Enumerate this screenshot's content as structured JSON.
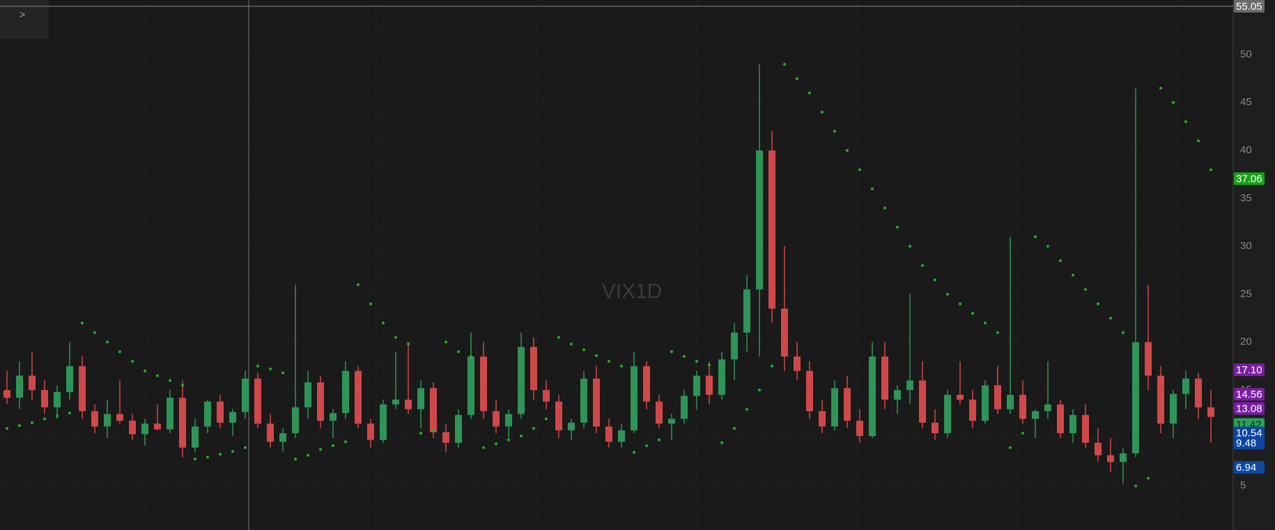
{
  "panel_toggle": ">",
  "chart_data": {
    "type": "candlestick",
    "title": "VIX1D",
    "ylim": [
      0.4,
      55.7
    ],
    "yticks": [
      5,
      10,
      15,
      20,
      25,
      30,
      35,
      40,
      45,
      50
    ],
    "grid": true,
    "up_color": "#2f9458",
    "down_color": "#d0494a",
    "sar_color": "#1fb51f",
    "candles": [
      [
        15,
        17,
        13.5,
        14.2
      ],
      [
        14.2,
        18,
        13,
        16.5
      ],
      [
        16.5,
        19,
        14,
        15
      ],
      [
        15,
        16,
        12.5,
        13.2
      ],
      [
        13.2,
        15.5,
        12,
        14.8
      ],
      [
        14.8,
        20,
        14,
        17.5
      ],
      [
        17.5,
        18.5,
        12,
        12.8
      ],
      [
        12.8,
        13.5,
        10.5,
        11.2
      ],
      [
        11.2,
        14,
        10,
        12.5
      ],
      [
        12.5,
        16,
        11.5,
        11.8
      ],
      [
        11.8,
        12.5,
        9.8,
        10.4
      ],
      [
        10.4,
        12,
        9.2,
        11.5
      ],
      [
        11.5,
        13.5,
        10.8,
        10.9
      ],
      [
        10.9,
        15,
        10.5,
        14.2
      ],
      [
        14.2,
        16,
        8,
        9
      ],
      [
        9,
        12,
        8.5,
        11.2
      ],
      [
        11.2,
        14,
        10.5,
        13.8
      ],
      [
        13.8,
        14.5,
        11,
        11.6
      ],
      [
        11.6,
        13,
        10.2,
        12.7
      ],
      [
        12.7,
        17,
        12,
        16.2
      ],
      [
        16.2,
        16.8,
        11,
        11.5
      ],
      [
        11.5,
        12.5,
        9,
        9.6
      ],
      [
        9.6,
        11,
        8.6,
        10.5
      ],
      [
        10.5,
        26,
        10,
        13.2
      ],
      [
        13.2,
        17,
        12,
        15.8
      ],
      [
        15.8,
        16.5,
        11,
        11.8
      ],
      [
        11.8,
        13,
        10,
        12.6
      ],
      [
        12.6,
        18,
        12,
        17
      ],
      [
        17,
        17.5,
        11,
        11.5
      ],
      [
        11.5,
        12,
        9,
        9.8
      ],
      [
        9.8,
        14,
        9.5,
        13.5
      ],
      [
        13.5,
        19,
        13,
        14
      ],
      [
        14,
        20,
        12.5,
        13
      ],
      [
        13,
        16,
        11,
        15.2
      ],
      [
        15.2,
        15.8,
        10,
        10.6
      ],
      [
        10.6,
        11.5,
        8.5,
        9.5
      ],
      [
        9.5,
        13,
        9,
        12.4
      ],
      [
        12.4,
        21,
        12,
        18.5
      ],
      [
        18.5,
        20,
        12,
        12.8
      ],
      [
        12.8,
        14,
        10.5,
        11.2
      ],
      [
        11.2,
        13,
        10,
        12.5
      ],
      [
        12.5,
        21,
        12,
        19.5
      ],
      [
        19.5,
        20.5,
        14,
        15
      ],
      [
        15,
        16,
        13,
        13.8
      ],
      [
        13.8,
        14.5,
        10,
        10.8
      ],
      [
        10.8,
        12,
        9.8,
        11.6
      ],
      [
        11.6,
        17,
        11,
        16.2
      ],
      [
        16.2,
        17.5,
        10.5,
        11.2
      ],
      [
        11.2,
        12,
        9,
        9.6
      ],
      [
        9.6,
        11.5,
        9,
        10.8
      ],
      [
        10.8,
        19,
        10.5,
        17.5
      ],
      [
        17.5,
        18,
        13,
        13.8
      ],
      [
        13.8,
        14.5,
        11,
        11.5
      ],
      [
        11.5,
        12.5,
        9.8,
        12
      ],
      [
        12,
        15,
        11.5,
        14.4
      ],
      [
        14.4,
        17,
        13,
        16.5
      ],
      [
        16.5,
        18,
        13.5,
        14.5
      ],
      [
        14.5,
        19,
        14,
        18.2
      ],
      [
        18.2,
        22,
        16,
        21
      ],
      [
        21,
        27,
        19,
        25.5
      ],
      [
        25.5,
        49,
        18.5,
        40
      ],
      [
        40,
        42,
        22,
        23.5
      ],
      [
        23.5,
        30,
        17,
        18.5
      ],
      [
        18.5,
        20,
        16,
        17
      ],
      [
        17,
        18,
        12,
        12.8
      ],
      [
        12.8,
        14,
        10.5,
        11.2
      ],
      [
        11.2,
        16,
        10.8,
        15.2
      ],
      [
        15.2,
        16.5,
        11,
        11.8
      ],
      [
        11.8,
        13,
        9.5,
        10.2
      ],
      [
        10.2,
        20,
        10,
        18.5
      ],
      [
        18.5,
        20,
        13,
        14
      ],
      [
        14,
        15.5,
        12.5,
        15
      ],
      [
        15,
        25,
        13.5,
        16
      ],
      [
        16,
        18,
        11,
        11.6
      ],
      [
        11.6,
        13,
        9.8,
        10.5
      ],
      [
        10.5,
        15,
        10,
        14.5
      ],
      [
        14.5,
        18,
        13.5,
        14
      ],
      [
        14,
        15,
        11,
        11.8
      ],
      [
        11.8,
        16,
        11.5,
        15.5
      ],
      [
        15.5,
        17.5,
        12.5,
        13
      ],
      [
        13,
        31,
        12.5,
        14.5
      ],
      [
        14.5,
        16,
        11.5,
        12
      ],
      [
        12,
        13,
        10,
        12.8
      ],
      [
        12.8,
        18,
        12,
        13.5
      ],
      [
        13.5,
        14,
        10,
        10.5
      ],
      [
        10.5,
        13,
        9.5,
        12.4
      ],
      [
        12.4,
        13.5,
        9,
        9.5
      ],
      [
        9.5,
        11,
        7.5,
        8.2
      ],
      [
        8.2,
        10,
        6.5,
        7.5
      ],
      [
        7.5,
        9,
        5.2,
        8.4
      ],
      [
        8.4,
        46.5,
        8,
        20
      ],
      [
        20,
        26,
        15,
        16.5
      ],
      [
        16.5,
        17.5,
        10.5,
        11.5
      ],
      [
        11.5,
        15,
        10,
        14.6
      ],
      [
        14.6,
        17,
        13,
        16.2
      ],
      [
        16.2,
        16.8,
        12,
        13.2
      ],
      [
        13.2,
        15,
        9.5,
        12.2
      ]
    ],
    "sar": [
      11,
      11.3,
      11.6,
      12,
      12.3,
      12.6,
      22,
      21,
      20,
      19,
      18,
      17,
      16.5,
      16,
      15.5,
      7.8,
      8,
      8.3,
      8.6,
      9,
      17.5,
      17.2,
      16.8,
      7.8,
      8.2,
      8.8,
      9.2,
      9.6,
      26,
      24,
      22,
      20.5,
      19.8,
      10.5,
      10.8,
      20,
      19,
      18.5,
      9,
      9.4,
      9.8,
      10.2,
      11,
      12,
      20.5,
      19.8,
      19.2,
      18.6,
      18,
      17.5,
      8.5,
      9.2,
      9.8,
      19,
      18.5,
      18,
      17.6,
      9.5,
      11,
      13,
      15,
      17.5,
      49,
      47.5,
      46,
      44,
      42,
      40,
      38,
      36,
      34,
      32,
      30,
      28,
      26.5,
      25,
      24,
      23,
      22,
      21,
      9,
      10.5,
      31,
      30,
      28.5,
      27,
      25.5,
      24,
      22.5,
      21,
      5,
      5.8,
      46.5,
      45,
      43,
      41,
      38
    ],
    "price_labels": [
      {
        "value": 55.05,
        "label": "55.05",
        "color": "#6b6b6b",
        "text_color": "#ffffff"
      },
      {
        "value": 37.06,
        "label": "37.06",
        "color": "#17a317",
        "text_color": "#ffffff"
      },
      {
        "value": 17.1,
        "label": "17.10",
        "color": "#7b1fa2",
        "text_color": "#ffffff"
      },
      {
        "value": 14.56,
        "label": "14.56",
        "color": "#7b1fa2",
        "text_color": "#ffffff"
      },
      {
        "value": 13.08,
        "label": "13.08",
        "color": "#7b1fa2",
        "text_color": "#ffffff"
      },
      {
        "value": 11.42,
        "label": "11.42",
        "color": "#2aa05a",
        "text_color": "#0d2a12"
      },
      {
        "value": 10.54,
        "label": "10.54",
        "color": "#0d47a1",
        "text_color": "#ffffff"
      },
      {
        "value": 9.48,
        "label": "9.48",
        "color": "#0d47a1",
        "text_color": "#ffffff"
      },
      {
        "value": 6.94,
        "label": "6.94",
        "color": "#0d47a1",
        "text_color": "#ffffff"
      }
    ]
  }
}
